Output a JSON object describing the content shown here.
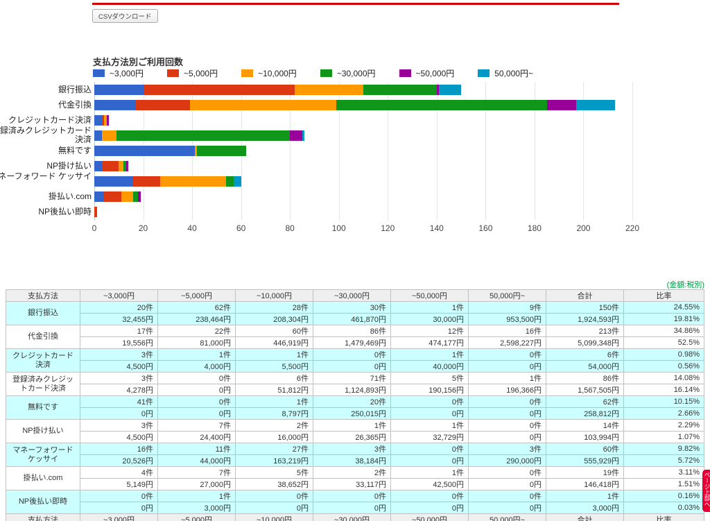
{
  "toolbar": {
    "csv_button_label": "CSVダウンロード"
  },
  "chart_data": {
    "type": "bar",
    "stacked": true,
    "orientation": "horizontal",
    "title": "支払方法別ご利用回数",
    "categories": [
      "銀行振込",
      "代金引換",
      "クレジットカード決済",
      "登録済みクレジットカード決済",
      "無料です",
      "NP掛け払い",
      "マネーフォワード ケッサイ",
      "掛払い.com",
      "NP後払い即時"
    ],
    "series": [
      {
        "name": "~3,000円",
        "color": "#3366CC",
        "values": [
          20,
          17,
          3,
          3,
          41,
          3,
          16,
          4,
          0
        ]
      },
      {
        "name": "~5,000円",
        "color": "#DC3912",
        "values": [
          62,
          22,
          1,
          0,
          0,
          7,
          11,
          7,
          1
        ]
      },
      {
        "name": "~10,000円",
        "color": "#FF9900",
        "values": [
          28,
          60,
          1,
          6,
          1,
          2,
          27,
          5,
          0
        ]
      },
      {
        "name": "~30,000円",
        "color": "#109618",
        "values": [
          30,
          86,
          0,
          71,
          20,
          1,
          3,
          2,
          0
        ]
      },
      {
        "name": "~50,000円",
        "color": "#990099",
        "values": [
          1,
          12,
          1,
          5,
          0,
          1,
          0,
          1,
          0
        ]
      },
      {
        "name": "50,000円~",
        "color": "#0099C6",
        "values": [
          9,
          16,
          0,
          1,
          0,
          0,
          3,
          0,
          0
        ]
      }
    ],
    "xlabel": "",
    "ylabel": "",
    "xlim": [
      0,
      220
    ],
    "xticks": [
      0,
      20,
      40,
      60,
      80,
      100,
      120,
      140,
      160,
      180,
      200,
      220
    ],
    "grid": true,
    "legend_position": "top"
  },
  "table": {
    "note": "(金額:税別)",
    "note_color": "#009944",
    "columns": [
      "支払方法",
      "~3,000円",
      "~5,000円",
      "~10,000円",
      "~30,000円",
      "~50,000円",
      "50,000円~",
      "合計",
      "比率"
    ],
    "rows": [
      {
        "method": "銀行振込",
        "counts": [
          "20件",
          "62件",
          "28件",
          "30件",
          "1件",
          "9件"
        ],
        "count_total": "150件",
        "count_ratio": "24.55%",
        "amounts": [
          "32,455円",
          "238,464円",
          "208,304円",
          "461,870円",
          "30,000円",
          "953,500円"
        ],
        "amount_total": "1,924,593円",
        "amount_ratio": "19.81%"
      },
      {
        "method": "代金引換",
        "counts": [
          "17件",
          "22件",
          "60件",
          "86件",
          "12件",
          "16件"
        ],
        "count_total": "213件",
        "count_ratio": "34.86%",
        "amounts": [
          "19,556円",
          "81,000円",
          "446,919円",
          "1,479,469円",
          "474,177円",
          "2,598,227円"
        ],
        "amount_total": "5,099,348円",
        "amount_ratio": "52.5%"
      },
      {
        "method": "クレジットカード決済",
        "counts": [
          "3件",
          "1件",
          "1件",
          "0件",
          "1件",
          "0件"
        ],
        "count_total": "6件",
        "count_ratio": "0.98%",
        "amounts": [
          "4,500円",
          "4,000円",
          "5,500円",
          "0円",
          "40,000円",
          "0円"
        ],
        "amount_total": "54,000円",
        "amount_ratio": "0.56%"
      },
      {
        "method": "登録済みクレジットカード決済",
        "counts": [
          "3件",
          "0件",
          "6件",
          "71件",
          "5件",
          "1件"
        ],
        "count_total": "86件",
        "count_ratio": "14.08%",
        "amounts": [
          "4,278円",
          "0円",
          "51,812円",
          "1,124,893円",
          "190,156円",
          "196,366円"
        ],
        "amount_total": "1,567,505円",
        "amount_ratio": "16.14%"
      },
      {
        "method": "無料です",
        "counts": [
          "41件",
          "0件",
          "1件",
          "20件",
          "0件",
          "0件"
        ],
        "count_total": "62件",
        "count_ratio": "10.15%",
        "amounts": [
          "0円",
          "0円",
          "8,797円",
          "250,015円",
          "0円",
          "0円"
        ],
        "amount_total": "258,812円",
        "amount_ratio": "2.66%"
      },
      {
        "method": "NP掛け払い",
        "counts": [
          "3件",
          "7件",
          "2件",
          "1件",
          "1件",
          "0件"
        ],
        "count_total": "14件",
        "count_ratio": "2.29%",
        "amounts": [
          "4,500円",
          "24,400円",
          "16,000円",
          "26,365円",
          "32,729円",
          "0円"
        ],
        "amount_total": "103,994円",
        "amount_ratio": "1.07%"
      },
      {
        "method": "マネーフォワード ケッサイ",
        "counts": [
          "16件",
          "11件",
          "27件",
          "3件",
          "0件",
          "3件"
        ],
        "count_total": "60件",
        "count_ratio": "9.82%",
        "amounts": [
          "20,526円",
          "44,000円",
          "163,219円",
          "38,184円",
          "0円",
          "290,000円"
        ],
        "amount_total": "555,929円",
        "amount_ratio": "5.72%"
      },
      {
        "method": "掛払い.com",
        "counts": [
          "4件",
          "7件",
          "5件",
          "2件",
          "1件",
          "0件"
        ],
        "count_total": "19件",
        "count_ratio": "3.11%",
        "amounts": [
          "5,149円",
          "27,000円",
          "38,652円",
          "33,117円",
          "42,500円",
          "0円"
        ],
        "amount_total": "146,418円",
        "amount_ratio": "1.51%"
      },
      {
        "method": "NP後払い即時",
        "counts": [
          "0件",
          "1件",
          "0件",
          "0件",
          "0件",
          "0件"
        ],
        "count_total": "1件",
        "count_ratio": "0.16%",
        "amounts": [
          "0円",
          "3,000円",
          "0円",
          "0円",
          "0円",
          "0円"
        ],
        "amount_total": "3,000円",
        "amount_ratio": "0.03%"
      }
    ]
  },
  "back_to_top": {
    "label": "ページ上部へ"
  }
}
